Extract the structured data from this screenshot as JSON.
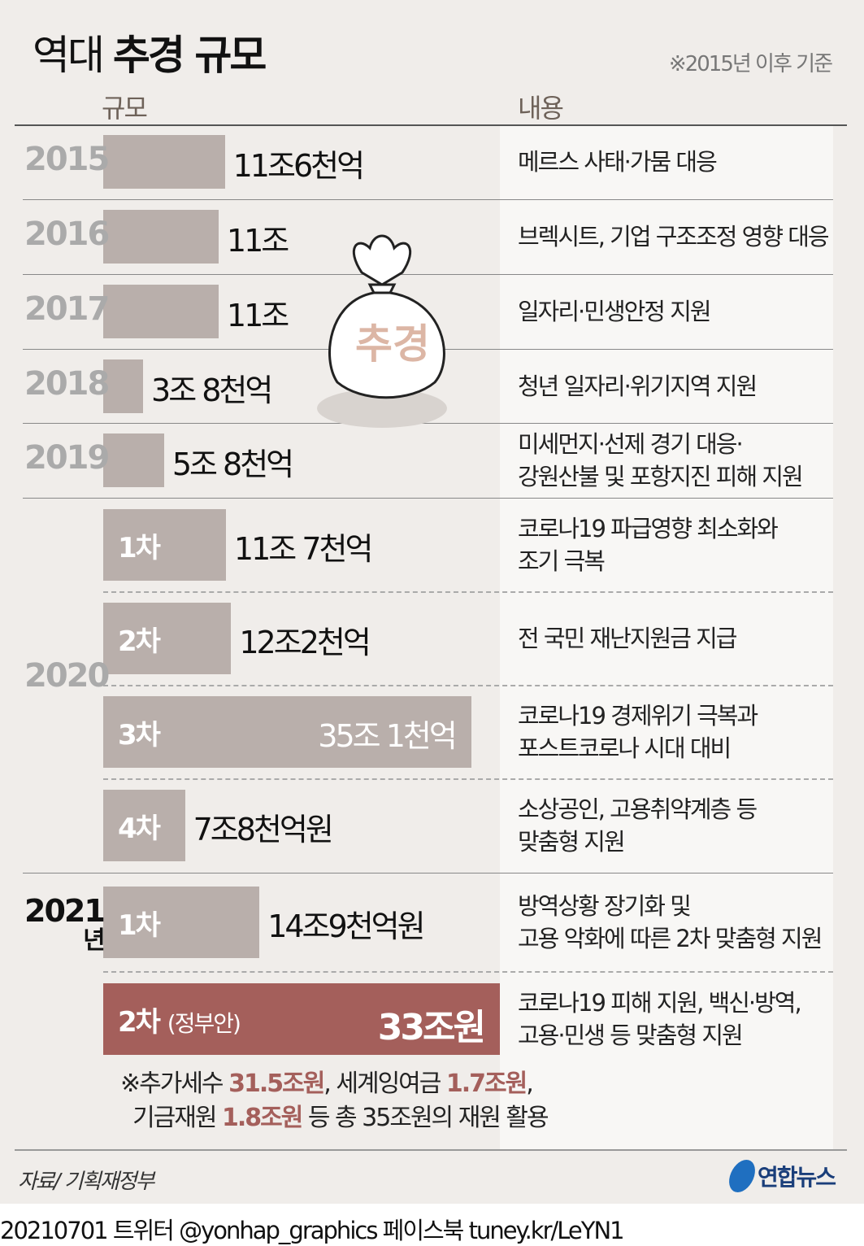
{
  "title_light": "역대",
  "title_bold": "추경 규모",
  "note": "※2015년 이후 기준",
  "columns": {
    "size": "규모",
    "content": "내용"
  },
  "illustration_label": "추경",
  "colors": {
    "bar": "#b9afab",
    "highlight": "#a45f5b",
    "background": "#f0edea"
  },
  "chart_data": {
    "type": "bar",
    "orientation": "horizontal",
    "unit": "조원",
    "rows": [
      {
        "year": "2015",
        "order": "",
        "value": 11.6,
        "label": "11조6천억",
        "desc": [
          "메르스 사태·가뭄 대응"
        ]
      },
      {
        "year": "2016",
        "order": "",
        "value": 11,
        "label": "11조",
        "desc": [
          "브렉시트, 기업 구조조정 영향 대응"
        ]
      },
      {
        "year": "2017",
        "order": "",
        "value": 11,
        "label": "11조",
        "desc": [
          "일자리·민생안정 지원"
        ]
      },
      {
        "year": "2018",
        "order": "",
        "value": 3.8,
        "label": "3조 8천억",
        "desc": [
          "청년 일자리·위기지역 지원"
        ]
      },
      {
        "year": "2019",
        "order": "",
        "value": 5.8,
        "label": "5조 8천억",
        "desc": [
          "미세먼지·선제 경기 대응·",
          "강원산불 및 포항지진 피해 지원"
        ]
      },
      {
        "year": "2020",
        "order": "1차",
        "value": 11.7,
        "label": "11조 7천억",
        "desc": [
          "코로나19 파급영향 최소화와",
          "조기 극복"
        ]
      },
      {
        "year": "2020",
        "order": "2차",
        "value": 12.2,
        "label": "12조2천억",
        "desc": [
          "전 국민 재난지원금 지급"
        ]
      },
      {
        "year": "2020",
        "order": "3차",
        "value": 35.1,
        "label": "35조 1천억",
        "desc": [
          "코로나19 경제위기 극복과",
          "포스트코로나 시대 대비"
        ]
      },
      {
        "year": "2020",
        "order": "4차",
        "value": 7.8,
        "label": "7조8천억원",
        "desc": [
          "소상공인, 고용취약계층 등",
          "맞춤형 지원"
        ]
      },
      {
        "year": "2021",
        "order": "1차",
        "value": 14.9,
        "label": "14조9천억원",
        "desc": [
          "방역상황 장기화 및",
          "고용 악화에 따른 2차 맞춤형 지원"
        ]
      },
      {
        "year": "2021",
        "order": "2차",
        "order_note": "(정부안)",
        "value": 33,
        "label": "33조원",
        "highlight": true,
        "desc": [
          "코로나19 피해 지원, 백신·방역,",
          "고용·민생 등 맞춤형 지원"
        ]
      }
    ]
  },
  "year_2021_suffix": "년",
  "funding_note": {
    "p1": "※추가세수 ",
    "v1": "31.5조원",
    "p2": ", 세계잉여금 ",
    "v2": "1.7조원",
    "p3": ",",
    "p4": "기금재원 ",
    "v3": "1.8조원",
    "p5": " 등 총 35조원의 재원 활용"
  },
  "source": "자료/ 기획재정부",
  "logo": "연합뉴스",
  "footer": "20210701 트위터 @yonhap_graphics  페이스북 tuney.kr/LeYN1"
}
